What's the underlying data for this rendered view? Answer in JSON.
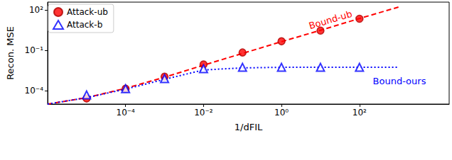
{
  "chart_data": {
    "type": "scatter",
    "x_label": "1/dFIL",
    "y_label": "Recon. MSE",
    "log": true,
    "grid": false,
    "legend": "upper left",
    "xlim": [
      1e-06,
      20000
    ],
    "xticks": [
      {
        "value": 0.0001,
        "label": "10⁻⁴"
      },
      {
        "value": 0.01,
        "label": "10⁻²"
      },
      {
        "value": 1,
        "label": "10⁰"
      },
      {
        "value": 100,
        "label": "10²"
      }
    ],
    "ylim": [
      1e-05,
      400
    ],
    "yticks": [
      {
        "value": 0.0001,
        "label": "10⁻⁴"
      },
      {
        "value": 0.1,
        "label": "10⁻¹"
      },
      {
        "value": 100,
        "label": "10²"
      }
    ],
    "series": [
      {
        "name": "Attack-ub",
        "type": "scatter",
        "color": "#ff0000",
        "marker": "circle",
        "x": [
          1e-05,
          0.0001,
          0.001,
          0.01,
          0.1,
          1,
          10,
          100
        ],
        "values": [
          2.6e-05,
          0.00014,
          0.0011,
          0.009,
          0.07,
          0.48,
          3,
          23
        ]
      },
      {
        "name": "Attack-b",
        "type": "scatter",
        "color": "#0000ff",
        "marker": "triangle",
        "x": [
          1e-05,
          0.0001,
          0.001,
          0.01,
          0.1,
          1,
          10,
          100
        ],
        "values": [
          4.8e-05,
          0.00014,
          0.0008,
          0.0043,
          0.0055,
          0.0055,
          0.0055,
          0.0055
        ]
      },
      {
        "name": "Bound-ub",
        "type": "line",
        "color": "#ff0000",
        "line_style": "dashed",
        "x": [
          1e-06,
          1e-05,
          0.0001,
          0.001,
          0.01,
          0.1,
          1,
          10,
          100,
          1000
        ],
        "values": [
          1e-05,
          3e-05,
          0.00015,
          0.001,
          0.008,
          0.06,
          0.45,
          3.2,
          24,
          170
        ]
      },
      {
        "name": "Bound-ours",
        "type": "line",
        "color": "#0000ff",
        "line_style": "dotted",
        "x": [
          1e-06,
          1e-05,
          0.0001,
          0.001,
          0.01,
          0.1,
          1,
          10,
          100,
          1000
        ],
        "values": [
          1e-05,
          3e-05,
          0.00013,
          0.0007,
          0.0035,
          0.005,
          0.0055,
          0.0055,
          0.0055,
          0.0055
        ]
      }
    ]
  }
}
